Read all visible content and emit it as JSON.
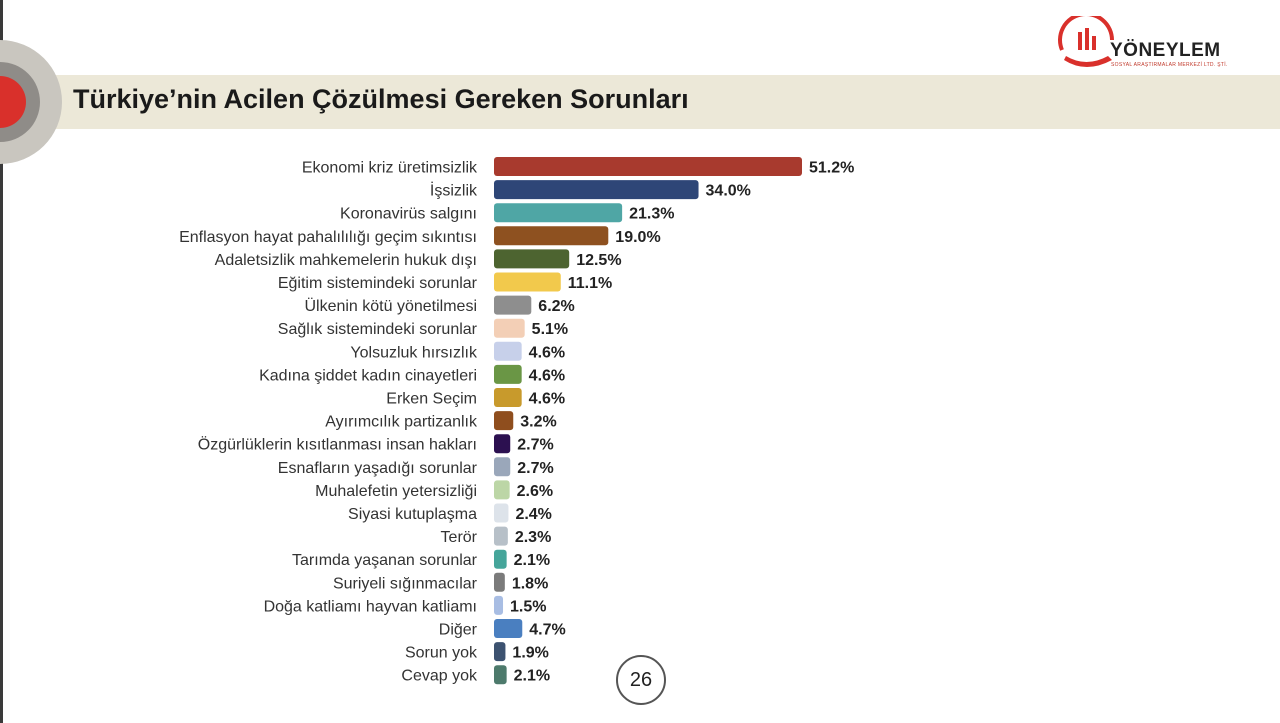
{
  "slide": {
    "title": "Türkiye’nin Acilen Çözülmesi Gereken Sorunları",
    "page_number": "26"
  },
  "logo": {
    "name": "YÖNEYLEM",
    "subtitle": "SOSYAL ARAŞTIRMALAR MERKEZİ LTD. ŞTİ.",
    "color": "#d9302b"
  },
  "chart_data": {
    "type": "bar",
    "orientation": "horizontal",
    "title": "",
    "xlabel": "",
    "ylabel": "",
    "value_suffix": "%",
    "xlim": [
      0,
      51.2
    ],
    "grid": false,
    "categories": [
      "Ekonomi kriz üretimsizlik",
      "İşsizlik",
      "Koronavirüs salgını",
      "Enflasyon hayat pahalılılığı geçim sıkıntısı",
      "Adaletsizlik mahkemelerin hukuk dışı",
      "Eğitim sistemindeki sorunlar",
      "Ülkenin kötü yönetilmesi",
      "Sağlık sistemindeki sorunlar",
      "Yolsuzluk hırsızlık",
      "Kadına şiddet kadın cinayetleri",
      "Erken Seçim",
      "Ayırımcılık partizanlık",
      "Özgürlüklerin kısıtlanması insan hakları",
      "Esnafların yaşadığı sorunlar",
      "Muhalefetin yetersizliği",
      "Siyasi kutuplaşma",
      "Terör",
      "Tarımda yaşanan sorunlar",
      "Suriyeli sığınmacılar",
      "Doğa katliamı hayvan katliamı",
      "Diğer",
      "Sorun yok",
      "Cevap yok"
    ],
    "values": [
      51.2,
      34.0,
      21.3,
      19.0,
      12.5,
      11.1,
      6.2,
      5.1,
      4.6,
      4.6,
      4.6,
      3.2,
      2.7,
      2.7,
      2.6,
      2.4,
      2.3,
      2.1,
      1.8,
      1.5,
      4.7,
      1.9,
      2.1
    ],
    "value_labels": [
      "51.2%",
      "34.0%",
      "21.3%",
      "19.0%",
      "12.5%",
      "11.1%",
      "6.2%",
      "5.1%",
      "4.6%",
      "4.6%",
      "4.6%",
      "3.2%",
      "2.7%",
      "2.7%",
      "2.6%",
      "2.4%",
      "2.3%",
      "2.1%",
      "1.8%",
      "1.5%",
      "4.7%",
      "1.9%",
      "2.1%"
    ],
    "colors": [
      "#a83a2e",
      "#2e4677",
      "#4fa6a5",
      "#8e5120",
      "#4d6430",
      "#f2c94c",
      "#8e8e8e",
      "#f3cfb6",
      "#c7d0ea",
      "#6a9645",
      "#c89a2c",
      "#8f4e1e",
      "#2c1050",
      "#9aa7ba",
      "#bcd6a6",
      "#dde3ea",
      "#b7c0c8",
      "#45a59a",
      "#7b7b7b",
      "#a8bde3",
      "#4a7fc0",
      "#3c5270",
      "#4d7a6c"
    ]
  }
}
